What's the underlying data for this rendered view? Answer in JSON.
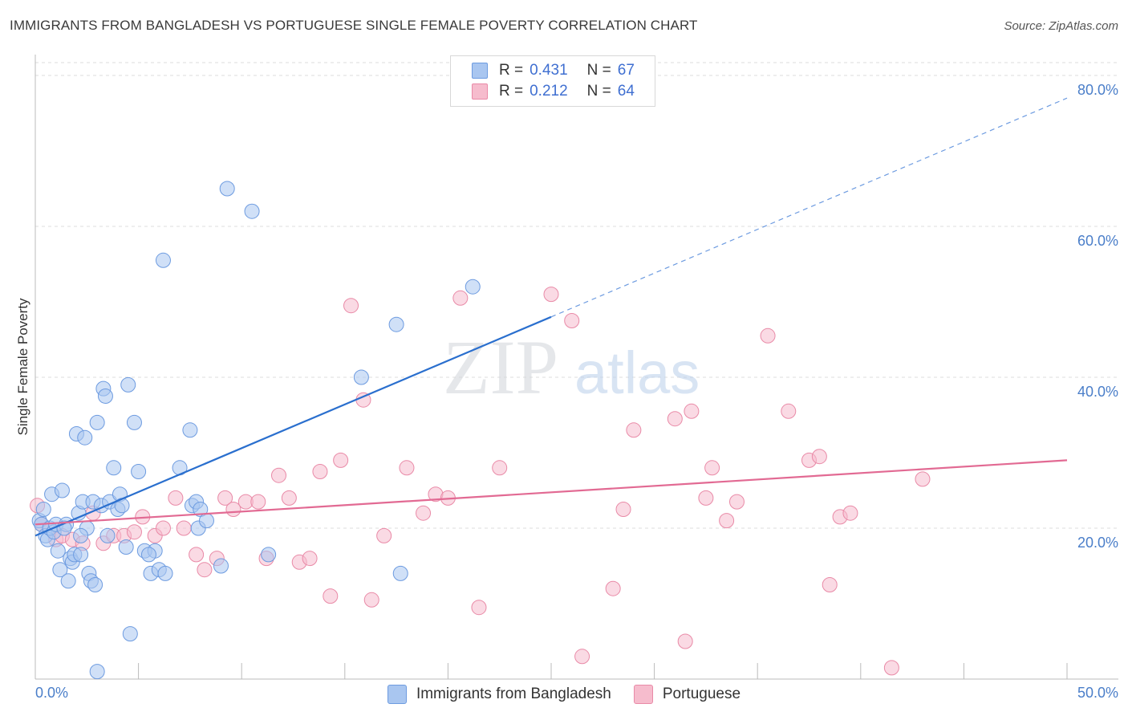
{
  "title": "IMMIGRANTS FROM BANGLADESH VS PORTUGUESE SINGLE FEMALE POVERTY CORRELATION CHART",
  "source": "Source: ZipAtlas.com",
  "watermark": {
    "zip": "ZIP",
    "atlas": "atlas"
  },
  "legend": [
    {
      "r_label": "R =",
      "r_value": "0.431",
      "n_label": "N =",
      "n_value": "67"
    },
    {
      "r_label": "R =",
      "r_value": "0.212",
      "n_label": "N =",
      "n_value": "64"
    }
  ],
  "colors": {
    "blue_fill": "#a9c6f0",
    "blue_stroke": "#6d9be0",
    "blue_line": "#2a6fce",
    "pink_fill": "#f6bccd",
    "pink_stroke": "#e98aa7",
    "pink_line": "#e26a93",
    "axis_text": "#4a7ec9",
    "grid": "#dddddd"
  },
  "chart_data": {
    "type": "scatter",
    "title": "IMMIGRANTS FROM BANGLADESH VS PORTUGUESE SINGLE FEMALE POVERTY CORRELATION CHART",
    "xlabel": "",
    "ylabel": "Single Female Poverty",
    "xlim": [
      0,
      50
    ],
    "ylim": [
      0,
      80
    ],
    "x_tick_labels": [
      "0.0%",
      "50.0%"
    ],
    "y_tick_labels": [
      "20.0%",
      "40.0%",
      "60.0%",
      "80.0%"
    ],
    "y_ticks": [
      20,
      40,
      60,
      80
    ],
    "grid": true,
    "legend_position": "top-center",
    "series": [
      {
        "name": "Immigrants from Bangladesh",
        "color": "#a9c6f0",
        "trend": {
          "x": [
            0,
            25
          ],
          "y": [
            19,
            48
          ],
          "extended_to": [
            50,
            77
          ]
        },
        "points": [
          [
            0.2,
            21
          ],
          [
            0.3,
            20.5
          ],
          [
            0.5,
            19
          ],
          [
            0.6,
            18.5
          ],
          [
            0.7,
            20
          ],
          [
            0.8,
            24.5
          ],
          [
            0.9,
            19.5
          ],
          [
            1.0,
            20.5
          ],
          [
            1.1,
            17
          ],
          [
            1.2,
            14.5
          ],
          [
            1.3,
            25
          ],
          [
            1.5,
            20.5
          ],
          [
            1.6,
            13
          ],
          [
            1.7,
            16
          ],
          [
            1.8,
            15.5
          ],
          [
            1.9,
            16.5
          ],
          [
            2.0,
            32.5
          ],
          [
            2.1,
            22
          ],
          [
            2.2,
            16.5
          ],
          [
            2.3,
            23.5
          ],
          [
            2.4,
            32
          ],
          [
            2.5,
            20
          ],
          [
            2.6,
            14
          ],
          [
            2.7,
            13
          ],
          [
            2.8,
            23.5
          ],
          [
            2.9,
            12.5
          ],
          [
            3.0,
            34
          ],
          [
            3.2,
            23
          ],
          [
            3.3,
            38.5
          ],
          [
            3.4,
            37.5
          ],
          [
            3.5,
            19
          ],
          [
            3.6,
            23.5
          ],
          [
            3.8,
            28
          ],
          [
            4.0,
            22.5
          ],
          [
            4.1,
            24.5
          ],
          [
            4.2,
            23
          ],
          [
            4.4,
            17.5
          ],
          [
            4.5,
            39
          ],
          [
            4.6,
            6
          ],
          [
            4.8,
            34
          ],
          [
            5.0,
            27.5
          ],
          [
            5.3,
            17
          ],
          [
            5.6,
            14
          ],
          [
            5.8,
            17
          ],
          [
            6.0,
            14.5
          ],
          [
            6.2,
            55.5
          ],
          [
            6.3,
            14
          ],
          [
            7.0,
            28
          ],
          [
            7.5,
            33
          ],
          [
            7.6,
            23
          ],
          [
            7.8,
            23.5
          ],
          [
            7.9,
            20
          ],
          [
            8.0,
            22.5
          ],
          [
            8.3,
            21
          ],
          [
            9.0,
            15
          ],
          [
            9.3,
            65
          ],
          [
            10.5,
            62
          ],
          [
            11.3,
            16.5
          ],
          [
            15.8,
            40
          ],
          [
            17.5,
            47
          ],
          [
            17.7,
            14
          ],
          [
            21.2,
            52
          ],
          [
            3.0,
            1
          ],
          [
            1.4,
            20
          ],
          [
            0.4,
            22.5
          ],
          [
            2.2,
            19
          ],
          [
            5.5,
            16.5
          ]
        ]
      },
      {
        "name": "Portuguese",
        "color": "#f6bccd",
        "trend": {
          "x": [
            0,
            50
          ],
          "y": [
            20.5,
            29
          ]
        },
        "points": [
          [
            0.1,
            23
          ],
          [
            0.3,
            20.5
          ],
          [
            1.0,
            18.5
          ],
          [
            1.3,
            19
          ],
          [
            1.8,
            18.5
          ],
          [
            2.3,
            18
          ],
          [
            2.8,
            22
          ],
          [
            3.3,
            18
          ],
          [
            3.8,
            19
          ],
          [
            4.3,
            19
          ],
          [
            4.8,
            19.5
          ],
          [
            5.2,
            21.5
          ],
          [
            5.8,
            19
          ],
          [
            6.2,
            20
          ],
          [
            6.8,
            24
          ],
          [
            7.2,
            20
          ],
          [
            7.8,
            16.5
          ],
          [
            8.2,
            14.5
          ],
          [
            8.8,
            16
          ],
          [
            9.2,
            24
          ],
          [
            9.6,
            22.5
          ],
          [
            10.2,
            23.5
          ],
          [
            10.8,
            23.5
          ],
          [
            11.2,
            16
          ],
          [
            11.8,
            27
          ],
          [
            12.3,
            24
          ],
          [
            12.8,
            15.5
          ],
          [
            13.3,
            16
          ],
          [
            13.8,
            27.5
          ],
          [
            14.3,
            11
          ],
          [
            14.8,
            29
          ],
          [
            15.3,
            49.5
          ],
          [
            15.9,
            37
          ],
          [
            16.3,
            10.5
          ],
          [
            16.9,
            19
          ],
          [
            18.0,
            28
          ],
          [
            18.8,
            22
          ],
          [
            19.4,
            24.5
          ],
          [
            20.0,
            24
          ],
          [
            20.6,
            50.5
          ],
          [
            21.5,
            9.5
          ],
          [
            22.5,
            28
          ],
          [
            25.0,
            51
          ],
          [
            26.0,
            47.5
          ],
          [
            26.5,
            3
          ],
          [
            28.0,
            12
          ],
          [
            28.5,
            22.5
          ],
          [
            29.0,
            33
          ],
          [
            31.0,
            34.5
          ],
          [
            31.5,
            5
          ],
          [
            31.8,
            35.5
          ],
          [
            32.5,
            24
          ],
          [
            32.8,
            28
          ],
          [
            33.5,
            21
          ],
          [
            34.0,
            23.5
          ],
          [
            35.5,
            45.5
          ],
          [
            36.5,
            35.5
          ],
          [
            37.5,
            29
          ],
          [
            38.0,
            29.5
          ],
          [
            38.5,
            12.5
          ],
          [
            39.0,
            21.5
          ],
          [
            39.5,
            22
          ],
          [
            41.5,
            1.5
          ],
          [
            43.0,
            26.5
          ]
        ]
      }
    ]
  },
  "bottom_legend": [
    {
      "label": "Immigrants from Bangladesh"
    },
    {
      "label": "Portuguese"
    }
  ]
}
